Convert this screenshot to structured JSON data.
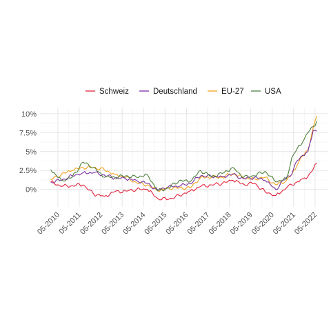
{
  "chart_data": {
    "type": "line",
    "title": "",
    "xlabel": "",
    "ylabel": "",
    "ylim": [
      -0.023,
      0.108
    ],
    "xlim": [
      "2009-07",
      "2022-12"
    ],
    "grid": true,
    "legend_position": "top",
    "x_ticks": [
      "05-2010",
      "05-2011",
      "05-2012",
      "05-2013",
      "05-2014",
      "05-2015",
      "05-2016",
      "05-2017",
      "05-2018",
      "05-2019",
      "05-2020",
      "05-2021",
      "05-2022"
    ],
    "y_ticks": [
      {
        "value": 0.0,
        "label": "0%"
      },
      {
        "value": 0.025,
        "label": "2.5%"
      },
      {
        "value": 0.05,
        "label": "5%"
      },
      {
        "value": 0.075,
        "label": "7.5%"
      },
      {
        "value": 0.1,
        "label": "10%"
      }
    ],
    "x": [
      "2010-01",
      "2010-07",
      "2011-01",
      "2011-07",
      "2012-01",
      "2012-07",
      "2013-01",
      "2013-07",
      "2014-01",
      "2014-07",
      "2015-01",
      "2015-07",
      "2016-01",
      "2016-07",
      "2017-01",
      "2017-07",
      "2018-01",
      "2018-07",
      "2019-01",
      "2019-07",
      "2020-01",
      "2020-07",
      "2021-01",
      "2021-04",
      "2021-07",
      "2021-10",
      "2022-01",
      "2022-04",
      "2022-06"
    ],
    "series": [
      {
        "name": "Schweiz",
        "color": "#e0233c",
        "values": [
          0.01,
          0.004,
          0.005,
          0.006,
          -0.006,
          -0.009,
          -0.003,
          -0.002,
          0.0,
          0.0,
          -0.012,
          -0.013,
          -0.008,
          -0.002,
          0.004,
          0.006,
          0.008,
          0.012,
          0.007,
          0.008,
          -0.003,
          -0.008,
          0.002,
          0.006,
          0.01,
          0.014,
          0.017,
          0.027,
          0.035
        ]
      },
      {
        "name": "Deutschland",
        "color": "#7b2fa1",
        "values": [
          0.01,
          0.012,
          0.018,
          0.022,
          0.022,
          0.019,
          0.015,
          0.014,
          0.012,
          0.008,
          -0.001,
          0.004,
          0.004,
          0.008,
          0.018,
          0.017,
          0.017,
          0.02,
          0.014,
          0.016,
          0.012,
          0.0,
          0.016,
          0.02,
          0.038,
          0.045,
          0.05,
          0.078,
          0.077
        ]
      },
      {
        "name": "EU-27",
        "color": "#f0a11e",
        "values": [
          0.013,
          0.02,
          0.025,
          0.029,
          0.029,
          0.026,
          0.02,
          0.016,
          0.009,
          0.006,
          -0.002,
          0.002,
          0.002,
          0.002,
          0.016,
          0.016,
          0.016,
          0.021,
          0.015,
          0.014,
          0.016,
          0.006,
          0.012,
          0.02,
          0.032,
          0.044,
          0.052,
          0.082,
          0.097
        ]
      },
      {
        "name": "USA",
        "color": "#4f7f3f",
        "values": [
          0.026,
          0.012,
          0.016,
          0.036,
          0.029,
          0.016,
          0.016,
          0.018,
          0.016,
          0.02,
          -0.002,
          0.002,
          0.012,
          0.01,
          0.025,
          0.017,
          0.021,
          0.029,
          0.016,
          0.018,
          0.024,
          0.01,
          0.014,
          0.042,
          0.054,
          0.062,
          0.075,
          0.083,
          0.09
        ]
      }
    ]
  }
}
